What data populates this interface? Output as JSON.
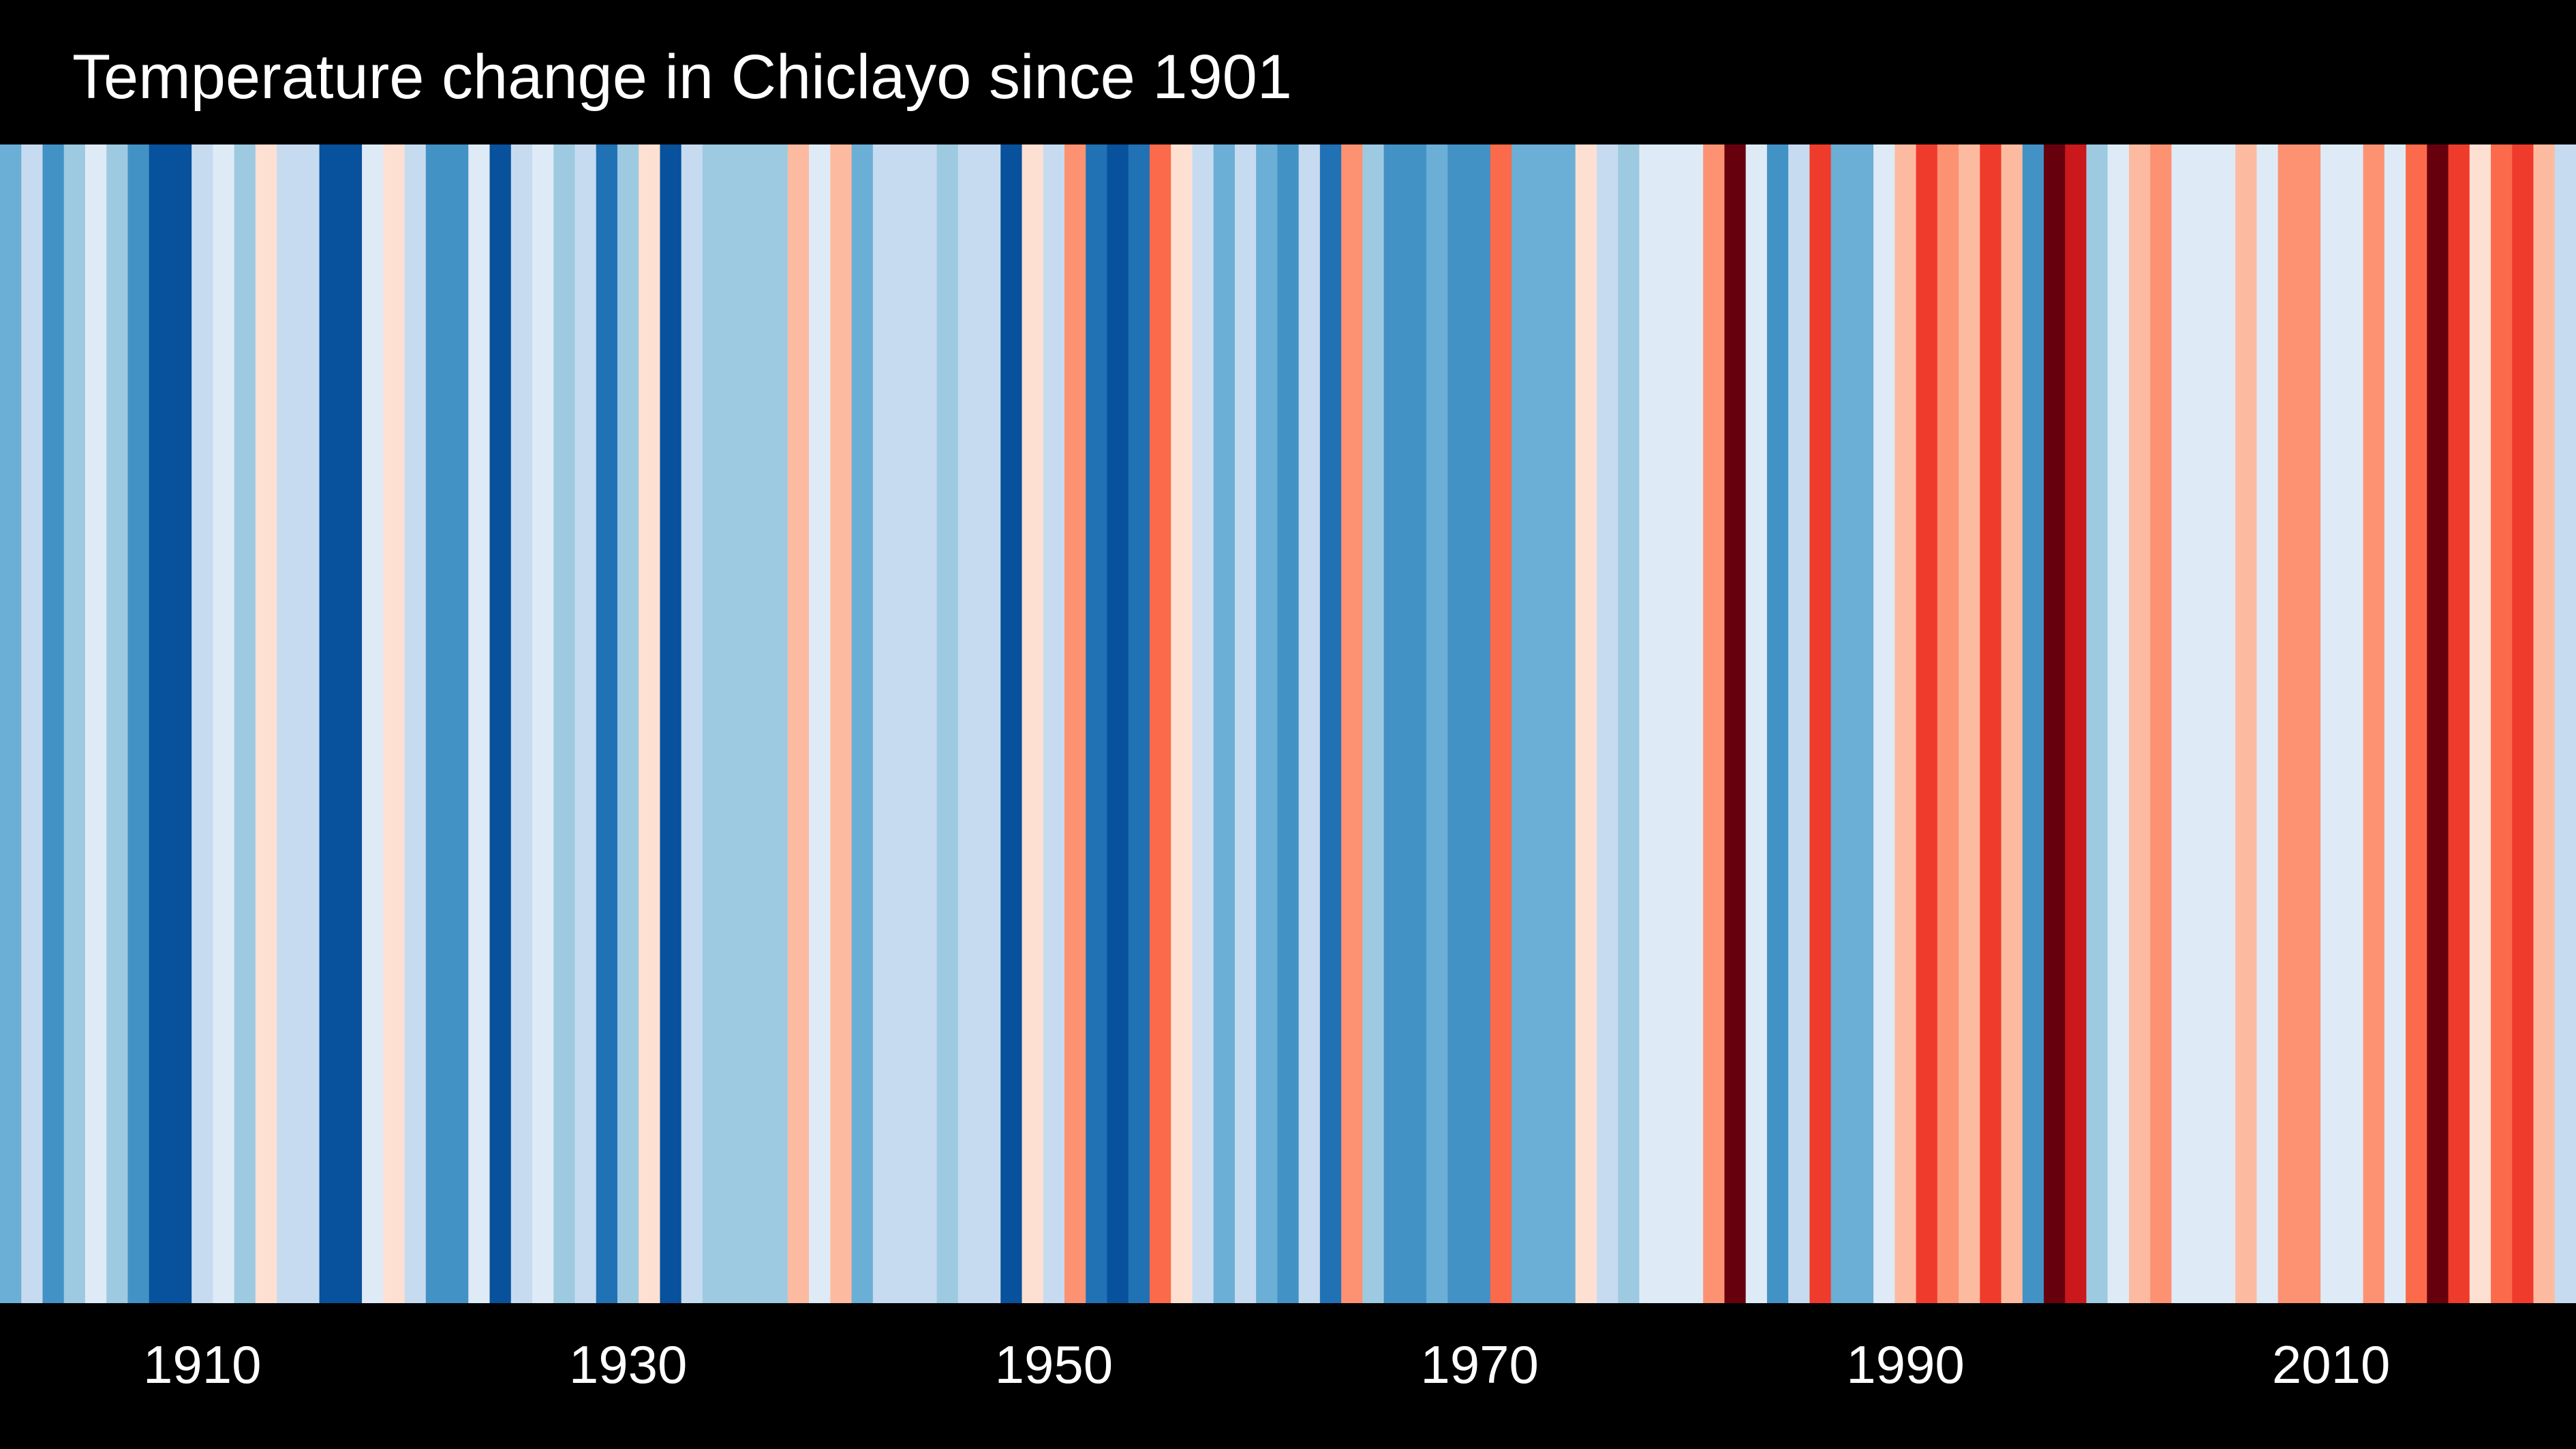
{
  "title": "Temperature change in Chiclayo since 1901",
  "chart_data": {
    "type": "heatmap",
    "title": "Temperature change in Chiclayo since 1901",
    "x_label": "",
    "y_label": "",
    "start_year": 1901,
    "end_year": 2021,
    "years": [
      1901,
      1902,
      1903,
      1904,
      1905,
      1906,
      1907,
      1908,
      1909,
      1910,
      1911,
      1912,
      1913,
      1914,
      1915,
      1916,
      1917,
      1918,
      1919,
      1920,
      1921,
      1922,
      1923,
      1924,
      1925,
      1926,
      1927,
      1928,
      1929,
      1930,
      1931,
      1932,
      1933,
      1934,
      1935,
      1936,
      1937,
      1938,
      1939,
      1940,
      1941,
      1942,
      1943,
      1944,
      1945,
      1946,
      1947,
      1948,
      1949,
      1950,
      1951,
      1952,
      1953,
      1954,
      1955,
      1956,
      1957,
      1958,
      1959,
      1960,
      1961,
      1962,
      1963,
      1964,
      1965,
      1966,
      1967,
      1968,
      1969,
      1970,
      1971,
      1972,
      1973,
      1974,
      1975,
      1976,
      1977,
      1978,
      1979,
      1980,
      1981,
      1982,
      1983,
      1984,
      1985,
      1986,
      1987,
      1988,
      1989,
      1990,
      1991,
      1992,
      1993,
      1994,
      1995,
      1996,
      1997,
      1998,
      1999,
      2000,
      2001,
      2002,
      2003,
      2004,
      2005,
      2006,
      2007,
      2008,
      2009,
      2010,
      2011,
      2012,
      2013,
      2014,
      2015,
      2016,
      2017,
      2018,
      2019,
      2020,
      2021
    ],
    "stripe_colors": [
      "#6baed6",
      "#c6dbef",
      "#4292c6",
      "#9ecae1",
      "#deebf7",
      "#9ecae1",
      "#4292c6",
      "#08519c",
      "#08519c",
      "#c6dbef",
      "#deebf7",
      "#9ecae1",
      "#fee0d2",
      "#c6dbef",
      "#c6dbef",
      "#08519c",
      "#08519c",
      "#deebf7",
      "#fee0d2",
      "#c6dbef",
      "#4292c6",
      "#4292c6",
      "#deebf7",
      "#08519c",
      "#c6dbef",
      "#deebf7",
      "#9ecae1",
      "#c6dbef",
      "#2171b5",
      "#9ecae1",
      "#fee0d2",
      "#08519c",
      "#c6dbef",
      "#9ecae1",
      "#9ecae1",
      "#9ecae1",
      "#9ecae1",
      "#fcbba1",
      "#deebf7",
      "#fcbba1",
      "#6baed6",
      "#c6dbef",
      "#c6dbef",
      "#c6dbef",
      "#9ecae1",
      "#c6dbef",
      "#c6dbef",
      "#08519c",
      "#fee0d2",
      "#c6dbef",
      "#fc9272",
      "#2171b5",
      "#08519c",
      "#2171b5",
      "#fb6a4a",
      "#fee0d2",
      "#c6dbef",
      "#6baed6",
      "#c6dbef",
      "#6baed6",
      "#4292c6",
      "#c6dbef",
      "#2171b5",
      "#fc9272",
      "#9ecae1",
      "#4292c6",
      "#4292c6",
      "#6baed6",
      "#4292c6",
      "#4292c6",
      "#fb6a4a",
      "#6baed6",
      "#6baed6",
      "#6baed6",
      "#fee0d2",
      "#c6dbef",
      "#9ecae1",
      "#deebf7",
      "#deebf7",
      "#deebf7",
      "#fc9272",
      "#67000d",
      "#deebf7",
      "#4292c6",
      "#c6dbef",
      "#ef3b2c",
      "#6baed6",
      "#6baed6",
      "#deebf7",
      "#fcbba1",
      "#ef3b2c",
      "#fc9272",
      "#fcbba1",
      "#ef3b2c",
      "#fcbba1",
      "#4292c6",
      "#67000d",
      "#cb181d",
      "#9ecae1",
      "#deebf7",
      "#fcbba1",
      "#fc9272",
      "#deebf7",
      "#deebf7",
      "#deebf7",
      "#fcbba1",
      "#deebf7",
      "#fc9272",
      "#fc9272",
      "#deebf7",
      "#deebf7",
      "#fc9272",
      "#deebf7",
      "#fb6a4a",
      "#67000d",
      "#ef3b2c",
      "#fee0d2",
      "#fb6a4a",
      "#ef3b2c",
      "#fcbba1",
      "#c6dbef"
    ],
    "x_ticks": [
      {
        "year": 1910,
        "label": "1910"
      },
      {
        "year": 1930,
        "label": "1930"
      },
      {
        "year": 1950,
        "label": "1950"
      },
      {
        "year": 1970,
        "label": "1970"
      },
      {
        "year": 1990,
        "label": "1990"
      },
      {
        "year": 2010,
        "label": "2010"
      }
    ],
    "legend": "none",
    "grid": false
  }
}
